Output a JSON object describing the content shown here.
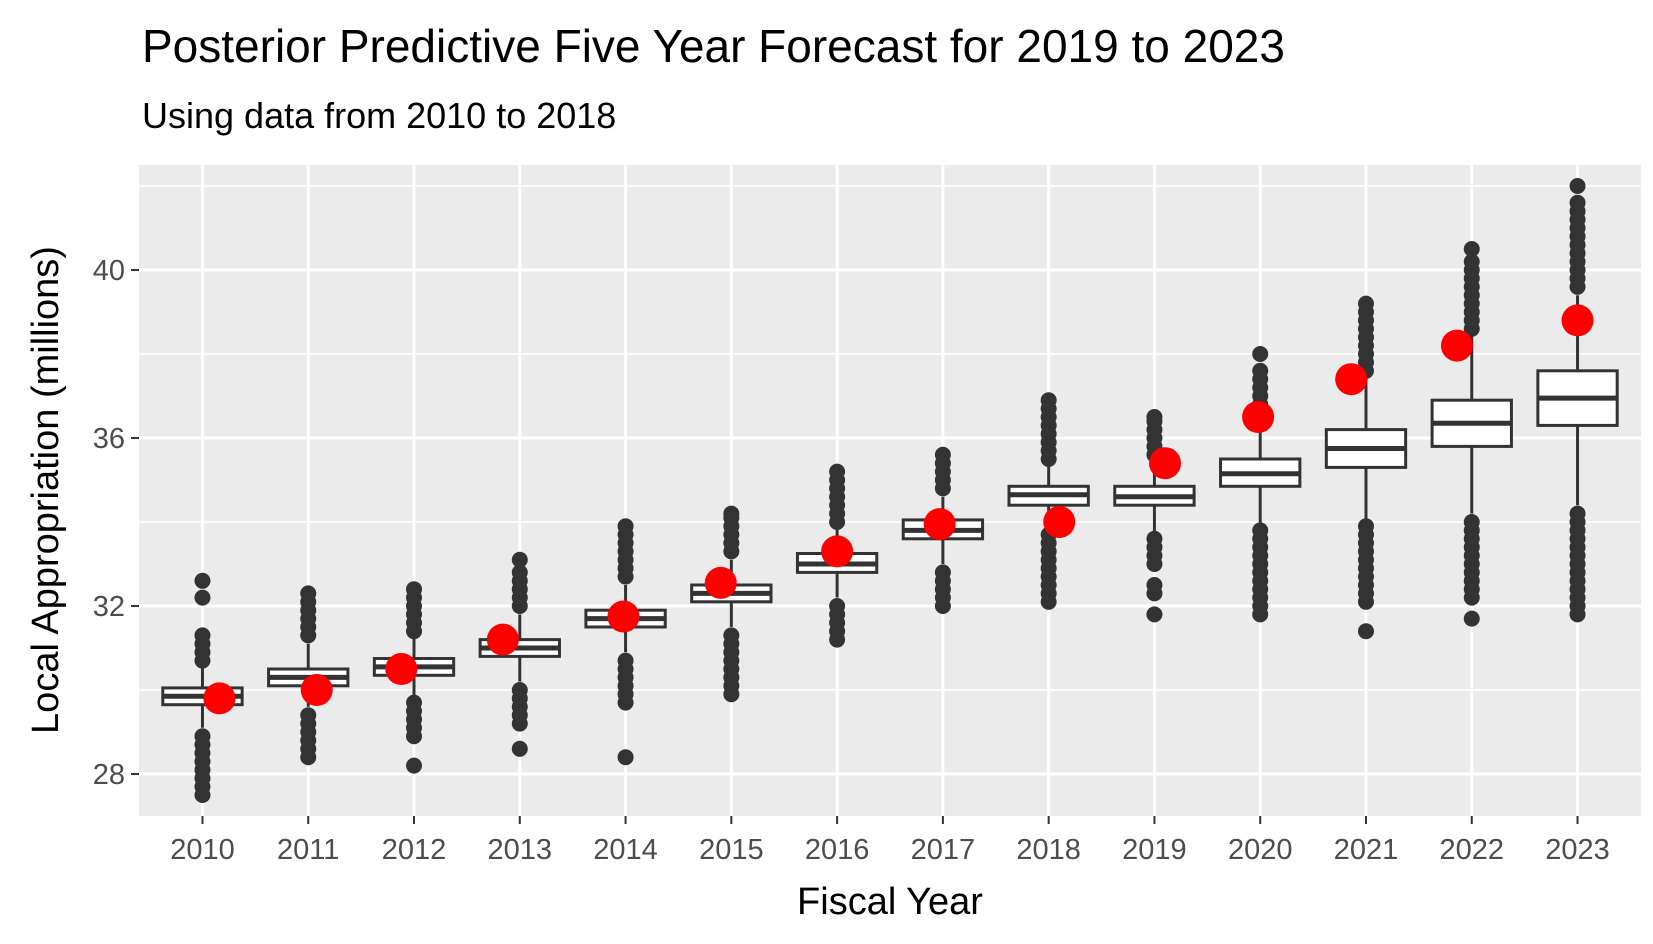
{
  "chart_data": {
    "type": "boxplot",
    "title": "Posterior Predictive Five Year Forecast for 2019 to 2023",
    "subtitle": "Using data from 2010 to 2018",
    "xlabel": "Fiscal Year",
    "ylabel": "Local Appropriation (millions)",
    "ylim": [
      27.0,
      42.5
    ],
    "yticks": [
      28,
      32,
      36,
      40
    ],
    "grid": true,
    "categories": [
      "2010",
      "2011",
      "2012",
      "2013",
      "2014",
      "2015",
      "2016",
      "2017",
      "2018",
      "2019",
      "2020",
      "2021",
      "2022",
      "2023"
    ],
    "boxes": [
      {
        "year": "2010",
        "q1": 29.65,
        "median": 29.85,
        "q3": 30.05,
        "whisker_low": 29.1,
        "whisker_high": 30.6,
        "outliers": [
          27.5,
          27.7,
          27.9,
          28.1,
          28.3,
          28.5,
          28.7,
          28.9,
          30.7,
          30.9,
          31.1,
          31.3,
          32.2,
          32.6
        ]
      },
      {
        "year": "2011",
        "q1": 30.1,
        "median": 30.3,
        "q3": 30.5,
        "whisker_low": 29.6,
        "whisker_high": 31.1,
        "outliers": [
          28.4,
          28.6,
          28.8,
          29.0,
          29.2,
          29.4,
          31.3,
          31.5,
          31.7,
          31.9,
          32.1,
          32.3
        ]
      },
      {
        "year": "2012",
        "q1": 30.35,
        "median": 30.55,
        "q3": 30.75,
        "whisker_low": 29.8,
        "whisker_high": 31.3,
        "outliers": [
          28.2,
          28.9,
          29.1,
          29.3,
          29.5,
          29.7,
          31.4,
          31.6,
          31.8,
          32.0,
          32.2,
          32.4
        ]
      },
      {
        "year": "2013",
        "q1": 30.8,
        "median": 31.0,
        "q3": 31.2,
        "whisker_low": 30.2,
        "whisker_high": 31.8,
        "outliers": [
          28.6,
          29.2,
          29.4,
          29.6,
          29.8,
          30.0,
          32.0,
          32.2,
          32.4,
          32.6,
          32.8,
          33.1
        ]
      },
      {
        "year": "2014",
        "q1": 31.5,
        "median": 31.7,
        "q3": 31.9,
        "whisker_low": 30.9,
        "whisker_high": 32.5,
        "outliers": [
          28.4,
          29.7,
          29.9,
          30.1,
          30.3,
          30.5,
          30.7,
          32.7,
          32.9,
          33.1,
          33.3,
          33.5,
          33.7,
          33.9
        ]
      },
      {
        "year": "2015",
        "q1": 32.1,
        "median": 32.3,
        "q3": 32.5,
        "whisker_low": 31.5,
        "whisker_high": 33.1,
        "outliers": [
          29.9,
          30.1,
          30.3,
          30.5,
          30.7,
          30.9,
          31.1,
          31.3,
          33.3,
          33.5,
          33.7,
          33.9,
          34.1,
          34.2
        ]
      },
      {
        "year": "2016",
        "q1": 32.8,
        "median": 33.0,
        "q3": 33.25,
        "whisker_low": 32.2,
        "whisker_high": 33.9,
        "outliers": [
          31.2,
          31.4,
          31.6,
          31.8,
          32.0,
          34.0,
          34.2,
          34.4,
          34.6,
          34.8,
          35.0,
          35.2
        ]
      },
      {
        "year": "2017",
        "q1": 33.6,
        "median": 33.8,
        "q3": 34.05,
        "whisker_low": 33.0,
        "whisker_high": 34.6,
        "outliers": [
          32.0,
          32.2,
          32.4,
          32.6,
          32.8,
          34.8,
          35.0,
          35.2,
          35.4,
          35.6
        ]
      },
      {
        "year": "2018",
        "q1": 34.4,
        "median": 34.65,
        "q3": 34.85,
        "whisker_low": 33.8,
        "whisker_high": 35.4,
        "outliers": [
          32.1,
          32.3,
          32.5,
          32.7,
          32.9,
          33.1,
          33.3,
          33.5,
          33.7,
          35.5,
          35.7,
          35.9,
          36.1,
          36.3,
          36.5,
          36.7,
          36.9
        ]
      },
      {
        "year": "2019",
        "q1": 34.4,
        "median": 34.6,
        "q3": 34.85,
        "whisker_low": 33.7,
        "whisker_high": 35.5,
        "outliers": [
          31.8,
          32.3,
          32.5,
          33.0,
          33.2,
          33.4,
          33.6,
          35.6,
          35.8,
          36.0,
          36.2,
          36.4,
          36.5
        ]
      },
      {
        "year": "2020",
        "q1": 34.85,
        "median": 35.15,
        "q3": 35.5,
        "whisker_low": 33.9,
        "whisker_high": 36.4,
        "outliers": [
          31.8,
          32.0,
          32.2,
          32.4,
          32.6,
          32.8,
          33.0,
          33.2,
          33.4,
          33.6,
          33.8,
          36.6,
          36.8,
          37.0,
          37.2,
          37.4,
          37.6,
          38.0
        ]
      },
      {
        "year": "2021",
        "q1": 35.3,
        "median": 35.75,
        "q3": 36.2,
        "whisker_low": 34.0,
        "whisker_high": 37.5,
        "outliers": [
          31.4,
          32.1,
          32.3,
          32.5,
          32.7,
          32.9,
          33.1,
          33.3,
          33.5,
          33.7,
          33.9,
          37.6,
          37.8,
          38.0,
          38.2,
          38.4,
          38.6,
          38.8,
          39.0,
          39.2
        ]
      },
      {
        "year": "2022",
        "q1": 35.8,
        "median": 36.35,
        "q3": 36.9,
        "whisker_low": 34.2,
        "whisker_high": 38.5,
        "outliers": [
          31.7,
          32.2,
          32.4,
          32.6,
          32.8,
          33.0,
          33.2,
          33.4,
          33.6,
          33.8,
          34.0,
          38.6,
          38.8,
          39.0,
          39.2,
          39.4,
          39.6,
          39.8,
          40.0,
          40.2,
          40.5
        ]
      },
      {
        "year": "2023",
        "q1": 36.3,
        "median": 36.95,
        "q3": 37.6,
        "whisker_low": 34.4,
        "whisker_high": 39.4,
        "outliers": [
          31.8,
          32.0,
          32.2,
          32.4,
          32.6,
          32.8,
          33.0,
          33.2,
          33.4,
          33.6,
          33.8,
          34.0,
          34.2,
          39.6,
          39.8,
          40.0,
          40.2,
          40.4,
          40.6,
          40.8,
          41.0,
          41.2,
          41.4,
          41.6,
          42.0
        ]
      }
    ],
    "observed": {
      "name": "Observed / forecast point",
      "color": "#ff0000",
      "points": [
        {
          "year": "2010",
          "value": 29.8
        },
        {
          "year": "2011",
          "value": 30.0
        },
        {
          "year": "2012",
          "value": 30.5
        },
        {
          "year": "2013",
          "value": 31.2
        },
        {
          "year": "2014",
          "value": 31.75
        },
        {
          "year": "2015",
          "value": 32.55
        },
        {
          "year": "2016",
          "value": 33.3
        },
        {
          "year": "2017",
          "value": 33.95
        },
        {
          "year": "2018",
          "value": 34.0
        },
        {
          "year": "2019",
          "value": 35.4
        },
        {
          "year": "2020",
          "value": 36.5
        },
        {
          "year": "2021",
          "value": 37.4
        },
        {
          "year": "2022",
          "value": 38.2
        },
        {
          "year": "2023",
          "value": 38.8
        }
      ]
    },
    "colors": {
      "panel": "#ebebeb",
      "grid": "#ffffff",
      "box_stroke": "#333333",
      "box_fill": "#ffffff",
      "outlier": "#333333",
      "observed": "#ff0000"
    }
  }
}
